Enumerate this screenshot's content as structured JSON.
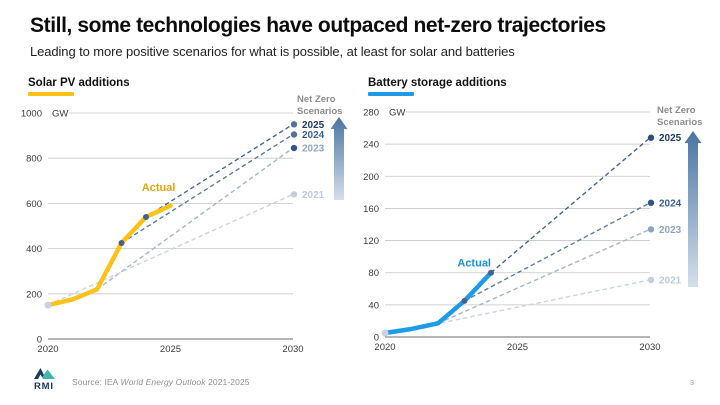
{
  "slide": {
    "title": "Still, some technologies have outpaced net-zero trajectories",
    "subtitle": "Leading to more positive scenarios for what is possible, at least for solar and batteries",
    "footer": {
      "source_prefix": "Source: IEA ",
      "source_italic": "World Energy Outlook",
      "source_suffix": " 2021-2025",
      "page_number": "3",
      "logo_text": "RMI"
    }
  },
  "chart_data": [
    {
      "type": "line",
      "title": "Solar PV additions",
      "unit": "GW",
      "accent_color": "#FDC217",
      "x_range": [
        2020,
        2030
      ],
      "x_ticks": [
        2020,
        2025,
        2030
      ],
      "y_range": [
        0,
        1000
      ],
      "y_ticks": [
        0,
        200,
        400,
        600,
        800,
        1000
      ],
      "grid": true,
      "legend_title_lines": [
        "Net Zero",
        "Scenarios"
      ],
      "actual": {
        "label": "Actual",
        "label_color": "#E2A40B",
        "color": "#FDC217",
        "x": [
          2020,
          2021,
          2022,
          2023,
          2024,
          2025
        ],
        "y": [
          150,
          175,
          220,
          425,
          540,
          590
        ],
        "label_anchor": [
          2025.2,
          655
        ],
        "dots": {
          "start": [
            2020,
            150
          ],
          "mid": [
            [
              2023,
              425
            ],
            [
              2024,
              540
            ]
          ]
        },
        "dot_colors": {
          "start": "#C9D2E2",
          "mid": "#45618C"
        }
      },
      "scenarios": [
        {
          "label": "2025",
          "from": [
            2024,
            540
          ],
          "to": [
            2030,
            950
          ],
          "line_color": "#41659D",
          "dot_color": "#54719E",
          "label_color": "#1E3A66"
        },
        {
          "label": "2024",
          "from": [
            2023,
            425
          ],
          "to": [
            2030,
            905
          ],
          "line_color": "#5B7BA8",
          "dot_color": "#54719E",
          "label_color": "#3B5F96"
        },
        {
          "label": "2023",
          "from": [
            2022,
            220
          ],
          "to": [
            2030,
            845
          ],
          "line_color": "#A3B5D0",
          "dot_color": "#35538A",
          "label_color": "#8FA4C5"
        },
        {
          "label": "2021",
          "from": [
            2020,
            150
          ],
          "to": [
            2030,
            640
          ],
          "line_color": "#CAD4E4",
          "dot_color": "#C2CDDF",
          "label_color": "#BFCADD"
        }
      ]
    },
    {
      "type": "line",
      "title": "Battery storage additions",
      "unit": "GW",
      "accent_color": "#1D9BE9",
      "x_range": [
        2020,
        2030
      ],
      "x_ticks": [
        2020,
        2025,
        2030
      ],
      "y_range": [
        0,
        280
      ],
      "y_ticks": [
        0,
        40,
        80,
        120,
        160,
        200,
        240,
        280
      ],
      "grid": true,
      "legend_title_lines": [
        "Net Zero",
        "Scenarios"
      ],
      "actual": {
        "label": "Actual",
        "label_color": "#1D8FE0",
        "color": "#1D9BE9",
        "x": [
          2020,
          2021,
          2022,
          2023,
          2024
        ],
        "y": [
          5,
          10,
          17,
          45,
          80
        ],
        "label_anchor": [
          2024,
          88
        ],
        "dots": {
          "start": [
            2020,
            5
          ],
          "mid": [
            [
              2023,
              45
            ],
            [
              2024,
              80
            ]
          ]
        },
        "dot_colors": {
          "start": "#C9D2E2",
          "mid": "#45618C"
        }
      },
      "scenarios": [
        {
          "label": "2025",
          "from": [
            2024,
            80
          ],
          "to": [
            2030,
            248
          ],
          "line_color": "#41659D",
          "dot_color": "#2F4C7D",
          "label_color": "#1E3A66"
        },
        {
          "label": "2024",
          "from": [
            2023,
            45
          ],
          "to": [
            2030,
            167
          ],
          "line_color": "#5B7BA8",
          "dot_color": "#35538A",
          "label_color": "#3B5F96"
        },
        {
          "label": "2023",
          "from": [
            2022,
            17
          ],
          "to": [
            2030,
            134
          ],
          "line_color": "#A3B5D0",
          "dot_color": "#8FA4C5",
          "label_color": "#8FA4C5"
        },
        {
          "label": "2021",
          "from": [
            2021,
            10
          ],
          "to": [
            2030,
            71
          ],
          "line_color": "#CAD4E4",
          "dot_color": "#C2CDDF",
          "label_color": "#BFCADD"
        }
      ]
    }
  ]
}
